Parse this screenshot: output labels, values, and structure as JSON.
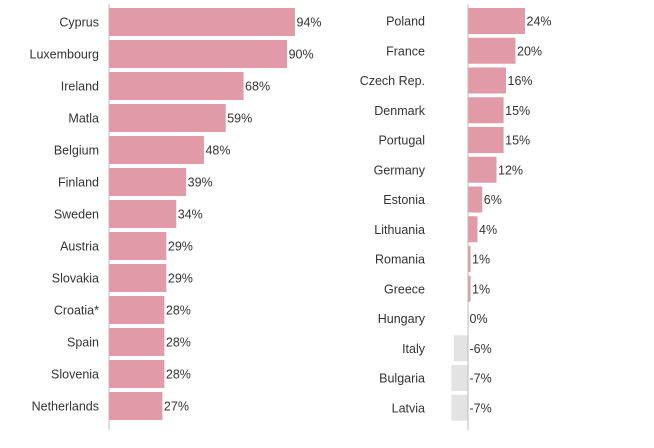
{
  "colors": {
    "positive": "#e29aa8",
    "negative": "#e3e3e3",
    "axis": "#bbbbbb",
    "text": "#333333"
  },
  "chart_data": [
    {
      "type": "bar",
      "orientation": "horizontal",
      "title": "",
      "xlabel": "",
      "ylabel": "",
      "xlim": [
        0,
        94
      ],
      "grid": false,
      "categories": [
        "Cyprus",
        "Luxembourg",
        "Ireland",
        "Matla",
        "Belgium",
        "Finland",
        "Sweden",
        "Austria",
        "Slovakia",
        "Croatia*",
        "Spain",
        "Slovenia",
        "Netherlands"
      ],
      "values": [
        94,
        90,
        68,
        59,
        48,
        39,
        34,
        29,
        29,
        28,
        28,
        28,
        27
      ],
      "data_labels": [
        "94%",
        "90%",
        "68%",
        "59%",
        "48%",
        "39%",
        "34%",
        "29%",
        "29%",
        "28%",
        "28%",
        "28%",
        "27%"
      ]
    },
    {
      "type": "bar",
      "orientation": "horizontal",
      "title": "",
      "xlabel": "",
      "ylabel": "",
      "xlim": [
        -7,
        24
      ],
      "grid": false,
      "categories": [
        "Poland",
        "France",
        "Czech Rep.",
        "Denmark",
        "Portugal",
        "Germany",
        "Estonia",
        "Lithuania",
        "Romania",
        "Greece",
        "Hungary",
        "Italy",
        "Bulgaria",
        "Latvia"
      ],
      "values": [
        24,
        20,
        16,
        15,
        15,
        12,
        6,
        4,
        1,
        1,
        0,
        -6,
        -7,
        -7
      ],
      "data_labels": [
        "24%",
        "20%",
        "16%",
        "15%",
        "15%",
        "12%",
        "6%",
        "4%",
        "1%",
        "1%",
        "0%",
        "-6%",
        "-7%",
        "-7%"
      ]
    }
  ]
}
